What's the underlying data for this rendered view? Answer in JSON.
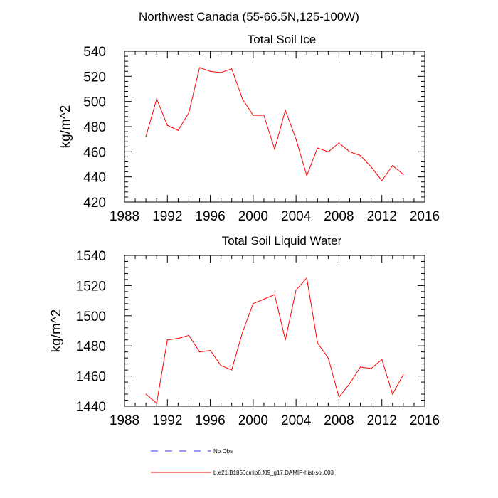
{
  "figure": {
    "title": "Northwest Canada (55-66.5N,125-100W)"
  },
  "legend": {
    "entries": [
      {
        "label": "No Obs",
        "color": "#3333ff",
        "style": "dashed"
      },
      {
        "label": "b.e21.B1850cmip6.f09_g17.DAMIP-hist-sol.003",
        "color": "#ff0000",
        "style": "solid"
      }
    ]
  },
  "chart_data": [
    {
      "type": "line",
      "title": "Total Soil Ice",
      "xlabel": "",
      "ylabel": "kg/m^2",
      "xlim": [
        1988,
        2016
      ],
      "ylim": [
        420,
        540
      ],
      "xticks": [
        1988,
        1992,
        1996,
        2000,
        2004,
        2008,
        2012,
        2016
      ],
      "yticks": [
        420,
        440,
        460,
        480,
        500,
        520,
        540
      ],
      "grid": false,
      "series": [
        {
          "color": "#ff0000",
          "x": [
            1990,
            1991,
            1992,
            1993,
            1994,
            1995,
            1996,
            1997,
            1998,
            1999,
            2000,
            2001,
            2002,
            2003,
            2004,
            2005,
            2006,
            2007,
            2008,
            2009,
            2010,
            2011,
            2012,
            2013,
            2014
          ],
          "values": [
            472,
            502,
            481,
            477,
            491,
            527,
            524,
            523,
            526,
            502,
            489,
            489,
            462,
            493,
            470,
            441,
            463,
            460,
            467,
            460,
            457,
            448,
            437,
            449,
            442
          ]
        }
      ]
    },
    {
      "type": "line",
      "title": "Total Soil Liquid Water",
      "xlabel": "",
      "ylabel": "kg/m^2",
      "xlim": [
        1988,
        2016
      ],
      "ylim": [
        1440,
        1540
      ],
      "xticks": [
        1988,
        1992,
        1996,
        2000,
        2004,
        2008,
        2012,
        2016
      ],
      "yticks": [
        1440,
        1460,
        1480,
        1500,
        1520,
        1540
      ],
      "grid": false,
      "series": [
        {
          "color": "#ff0000",
          "x": [
            1990,
            1991,
            1992,
            1993,
            1994,
            1995,
            1996,
            1997,
            1998,
            1999,
            2000,
            2001,
            2002,
            2003,
            2004,
            2005,
            2006,
            2007,
            2008,
            2009,
            2010,
            2011,
            2012,
            2013,
            2014
          ],
          "values": [
            1448,
            1442,
            1484,
            1485,
            1487,
            1476,
            1477,
            1467,
            1464,
            1489,
            1508,
            1511,
            1514,
            1484,
            1517,
            1525,
            1482,
            1472,
            1446,
            1455,
            1466,
            1465,
            1471,
            1448,
            1461
          ]
        }
      ]
    }
  ]
}
